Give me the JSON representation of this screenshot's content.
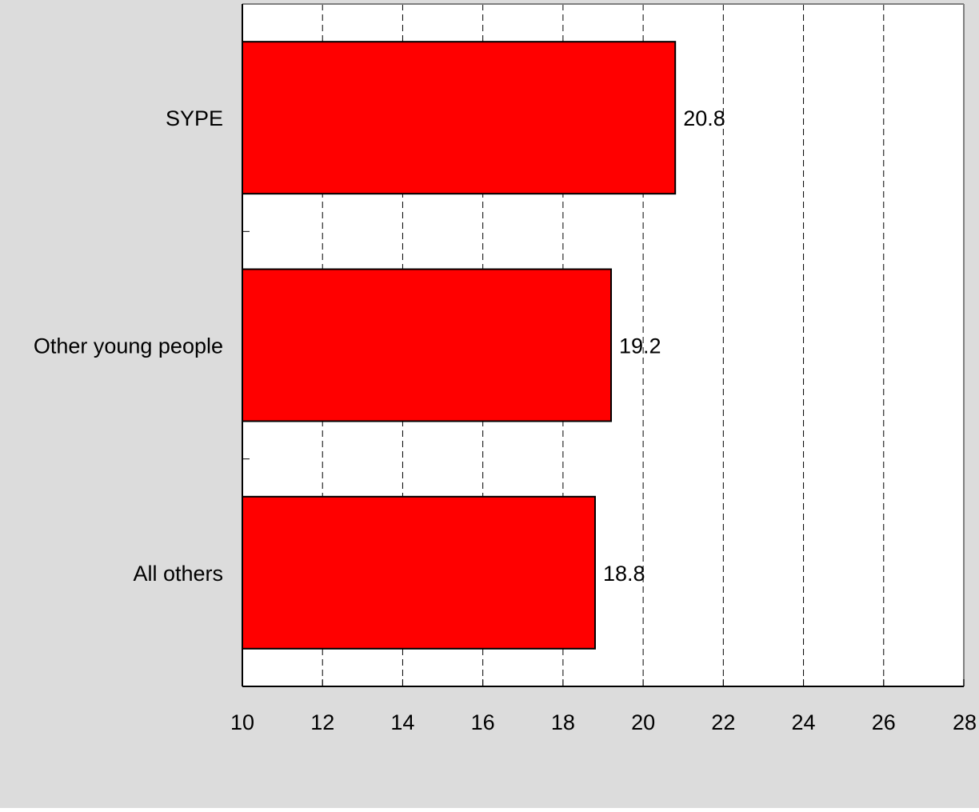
{
  "colors": {
    "page_background": "#dcdcdc",
    "plot_background": "#ffffff",
    "bar_fill": "#ff0000",
    "bar_stroke": "#000000",
    "gridline": "#000000",
    "axis": "#000000",
    "plot_border": "#808080",
    "text": "#000000"
  },
  "chart_data": {
    "type": "bar",
    "orientation": "horizontal",
    "categories": [
      "SYPE",
      "Other young people",
      "All others"
    ],
    "values": [
      20.8,
      19.2,
      18.8
    ],
    "data_labels": [
      "20.8",
      "19.2",
      "18.8"
    ],
    "xlim": [
      10,
      28
    ],
    "x_ticks": [
      10,
      12,
      14,
      16,
      18,
      20,
      22,
      24,
      26,
      28
    ],
    "x_tick_labels": [
      "10",
      "12",
      "14",
      "16",
      "18",
      "20",
      "22",
      "24",
      "26",
      "28"
    ],
    "grid": "vertical dashed",
    "legend": "none"
  }
}
